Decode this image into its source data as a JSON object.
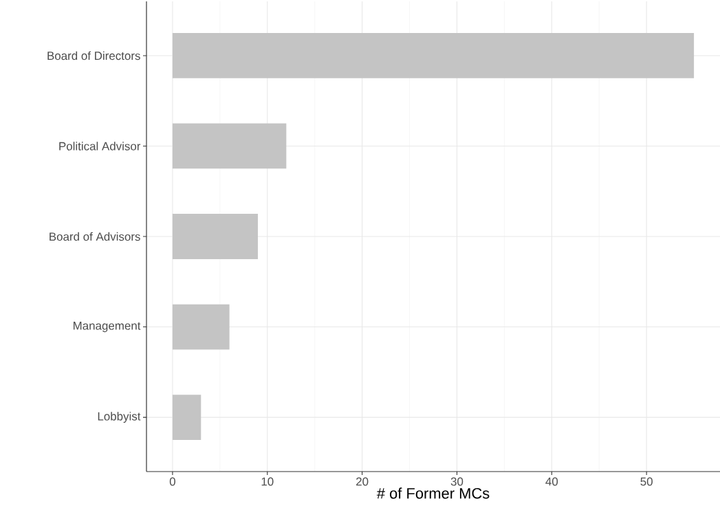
{
  "chart_data": {
    "type": "bar",
    "orientation": "horizontal",
    "xlabel": "# of Former MCs",
    "categories": [
      "Board of Directors",
      "Political Advisor",
      "Board of Advisors",
      "Management",
      "Lobbyist"
    ],
    "values": [
      55,
      12,
      9,
      6,
      3
    ],
    "color": "#c4c4c4",
    "xlim": [
      -2.75,
      57.75
    ],
    "xticks": [
      0,
      10,
      20,
      30,
      40,
      50
    ],
    "grid": true
  }
}
